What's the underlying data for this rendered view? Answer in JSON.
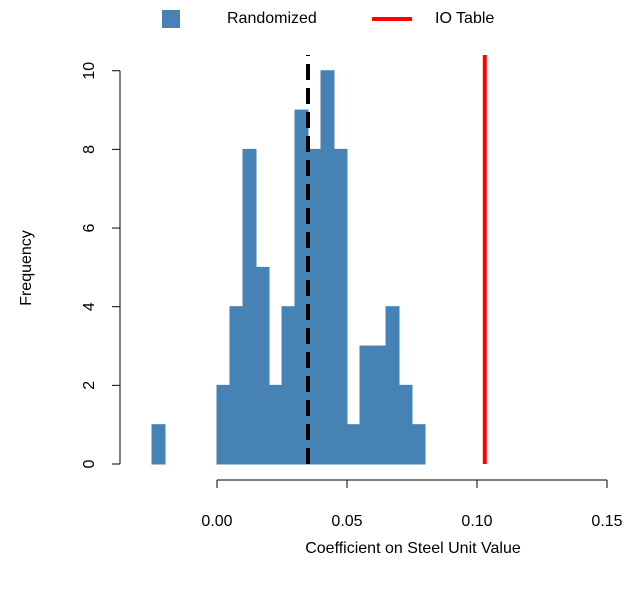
{
  "chart_data": {
    "type": "histogram",
    "xlabel": "Coefficient on Steel Unit Value",
    "ylabel": "Frequency",
    "bins": [
      -0.025,
      -0.02,
      -0.015,
      -0.01,
      -0.005,
      0,
      0.005,
      0.01,
      0.015,
      0.02,
      0.025,
      0.03,
      0.035,
      0.04,
      0.045,
      0.05,
      0.055,
      0.06,
      0.065,
      0.07,
      0.075,
      0.08
    ],
    "series": [
      {
        "name": "Randomized",
        "color": "#4682b4",
        "values": [
          1,
          0,
          0,
          0,
          0,
          2,
          4,
          8,
          5,
          2,
          4,
          9,
          8,
          10,
          8,
          1,
          3,
          3,
          4,
          2,
          1
        ]
      }
    ],
    "vlines": [
      {
        "name": "IO Table",
        "x": 0.103,
        "color": "#ff0000"
      },
      {
        "x": 0.035,
        "color": "#000000",
        "dashed": true
      }
    ],
    "xlim": [
      -0.03,
      0.155
    ],
    "ylim": [
      0,
      10.4
    ],
    "xticks": [
      {
        "value": 0,
        "label": "0.00"
      },
      0.05,
      {
        "value": 0.1,
        "label": "0.10"
      },
      0.15
    ],
    "yticks": [
      0,
      2,
      4,
      6,
      8,
      10
    ]
  }
}
